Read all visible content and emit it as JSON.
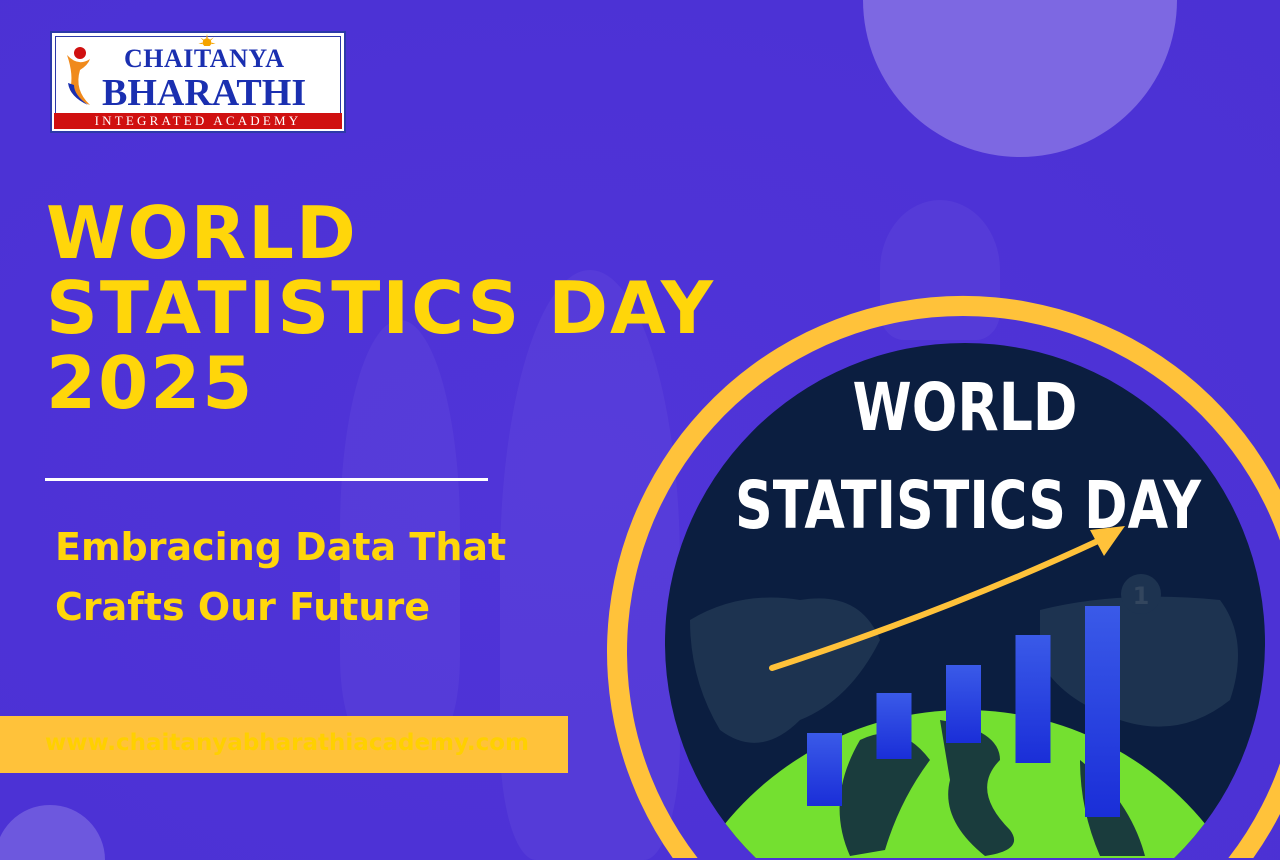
{
  "logo": {
    "line1": "CHAITANYA",
    "line2": "BHARATHI",
    "band": "INTEGRATED ACADEMY"
  },
  "headline": [
    "WORLD",
    "STATISTICS DAY",
    "2025"
  ],
  "subtitle": [
    "Embracing Data That",
    "Crafts Our Future"
  ],
  "website": "www.chaitanyabharathiacademy.com",
  "badge": {
    "line1": "WORLD",
    "line2": "STATISTICS DAY",
    "pin_number": "1",
    "bar_levels": [
      1,
      2,
      3,
      4,
      5
    ]
  },
  "colors": {
    "background": "#5034d8",
    "headline_yellow": "#ffd60a",
    "url_bar": "#ffc23a",
    "ring": "#ffc23a",
    "badge_dark": "#0b1e40",
    "bars": "#3355e6",
    "globe": "#74e030"
  }
}
